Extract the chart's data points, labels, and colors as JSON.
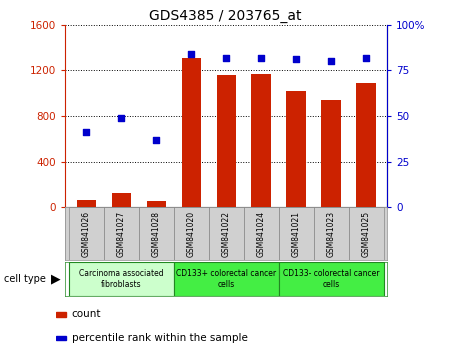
{
  "title": "GDS4385 / 203765_at",
  "samples": [
    "GSM841026",
    "GSM841027",
    "GSM841028",
    "GSM841020",
    "GSM841022",
    "GSM841024",
    "GSM841021",
    "GSM841023",
    "GSM841025"
  ],
  "counts": [
    60,
    120,
    55,
    1310,
    1160,
    1170,
    1020,
    940,
    1090
  ],
  "percentiles": [
    41,
    49,
    37,
    84,
    82,
    82,
    81,
    80,
    82
  ],
  "groups": [
    {
      "label": "Carcinoma associated\nfibroblasts",
      "start": 0,
      "end": 3,
      "color": "#ccffcc"
    },
    {
      "label": "CD133+ colorectal cancer\ncells",
      "start": 3,
      "end": 6,
      "color": "#44ee44"
    },
    {
      "label": "CD133- colorectal cancer\ncells",
      "start": 6,
      "end": 9,
      "color": "#44ee44"
    }
  ],
  "ylim_left": [
    0,
    1600
  ],
  "ylim_right": [
    0,
    100
  ],
  "yticks_left": [
    0,
    400,
    800,
    1200,
    1600
  ],
  "yticks_right": [
    0,
    25,
    50,
    75,
    100
  ],
  "ytick_labels_right": [
    "0",
    "25",
    "50",
    "75",
    "100%"
  ],
  "bar_color": "#cc2200",
  "dot_color": "#0000cc",
  "bar_width": 0.55,
  "grid_color": "black",
  "plot_bg": "#ffffff",
  "sample_bg": "#d0d0d0",
  "legend_items": [
    {
      "label": "count",
      "color": "#cc2200"
    },
    {
      "label": "percentile rank within the sample",
      "color": "#0000cc"
    }
  ]
}
